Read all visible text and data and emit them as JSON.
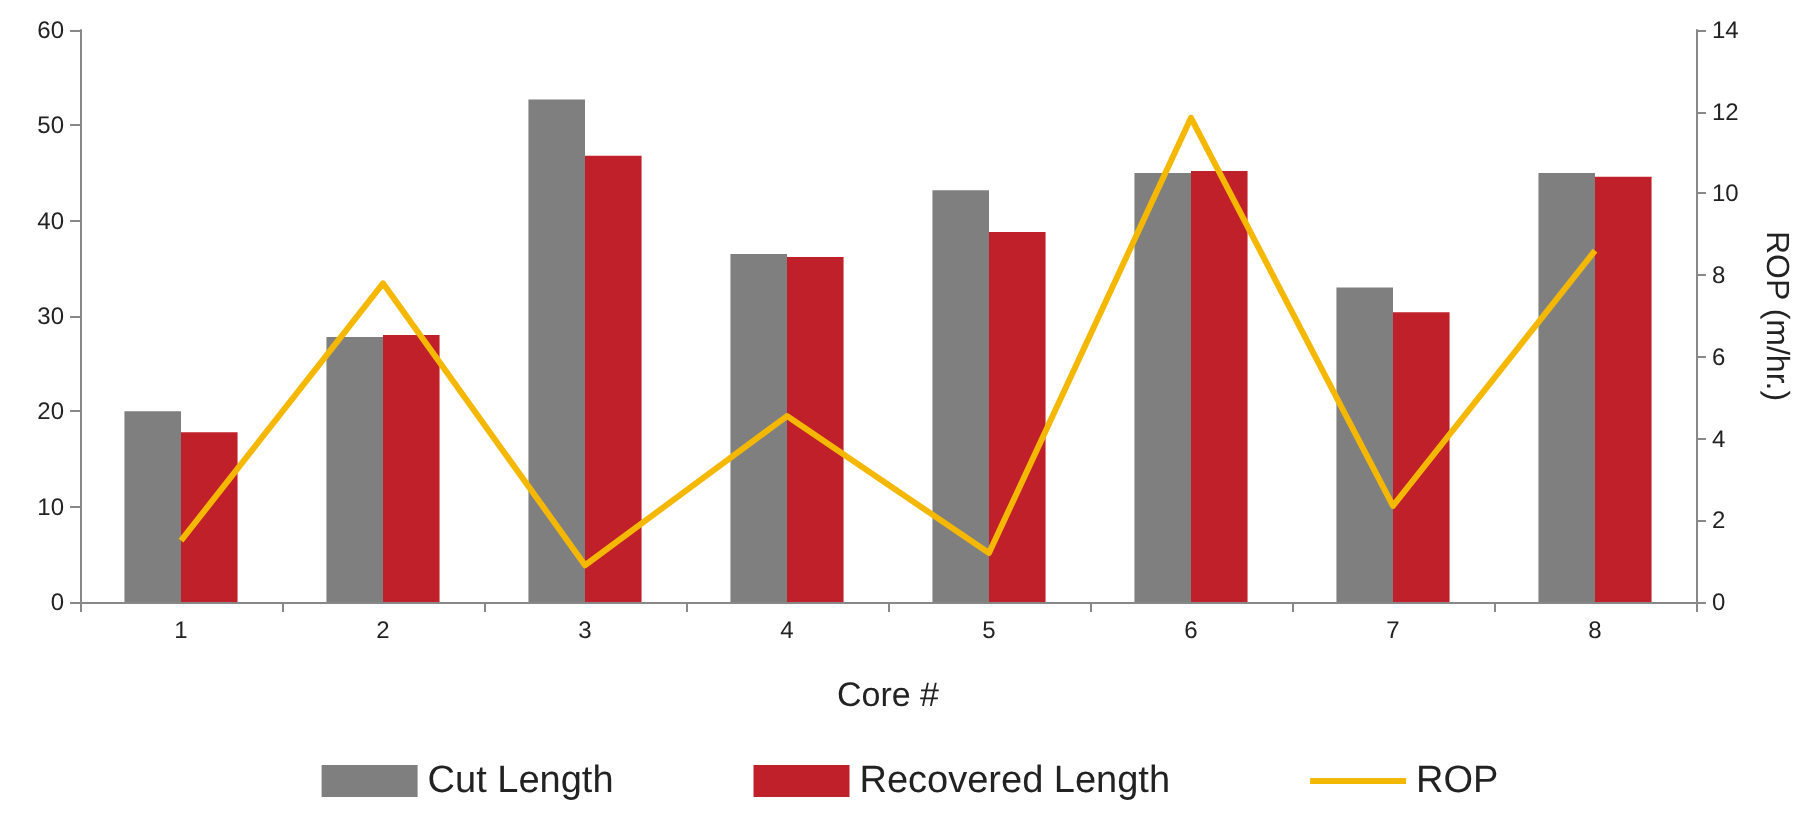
{
  "chart_data": {
    "type": "bar",
    "xlabel": "Core #",
    "y2label": "ROP (m/hr.)",
    "categories": [
      "1",
      "2",
      "3",
      "4",
      "5",
      "6",
      "7",
      "8"
    ],
    "series": [
      {
        "name": "Cut Length",
        "color": "#7f7f7f",
        "values": [
          20,
          27.8,
          52.7,
          36.5,
          43.2,
          45,
          33,
          45
        ]
      },
      {
        "name": "Recovered Length",
        "color": "#c0202a",
        "values": [
          17.8,
          28,
          46.8,
          36.2,
          38.8,
          45.2,
          30.4,
          44.6
        ]
      },
      {
        "name": "ROP",
        "type": "line",
        "axis": "y2",
        "color": "#f5b800",
        "values": [
          1.5,
          7.8,
          0.9,
          4.55,
          1.2,
          11.85,
          2.35,
          8.6
        ]
      }
    ],
    "ylim": [
      0,
      60
    ],
    "yticks": [
      0,
      10,
      20,
      30,
      40,
      50,
      60
    ],
    "y2lim": [
      0,
      14
    ],
    "y2ticks": [
      0,
      2,
      4,
      6,
      8,
      10,
      12,
      14
    ],
    "grid": false,
    "legend": "bottom",
    "marker": "none",
    "line_style": "solid"
  }
}
